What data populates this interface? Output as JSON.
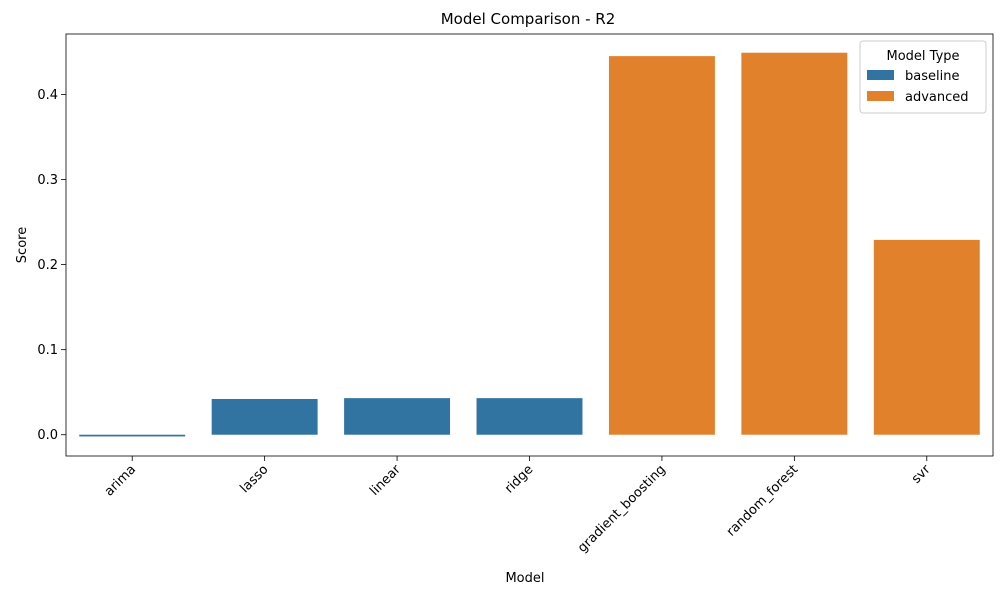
{
  "chart_data": {
    "type": "bar",
    "title": "Model Comparison - R2",
    "xlabel": "Model",
    "ylabel": "Score",
    "categories": [
      "arima",
      "lasso",
      "linear",
      "ridge",
      "gradient_boosting",
      "random_forest",
      "svr"
    ],
    "values": [
      -0.002,
      0.042,
      0.043,
      0.043,
      0.445,
      0.449,
      0.229
    ],
    "groups": [
      "baseline",
      "baseline",
      "baseline",
      "baseline",
      "advanced",
      "advanced",
      "advanced"
    ],
    "ylim": [
      -0.025,
      0.471
    ],
    "yticks": [
      0.0,
      0.1,
      0.2,
      0.3,
      0.4
    ],
    "ytick_labels": [
      "0.0",
      "0.1",
      "0.2",
      "0.3",
      "0.4"
    ],
    "grid": false,
    "legend": {
      "title": "Model Type",
      "placement": "top-right",
      "entries": [
        {
          "name": "baseline",
          "color": "#3274a1"
        },
        {
          "name": "advanced",
          "color": "#e1812c"
        }
      ]
    }
  }
}
